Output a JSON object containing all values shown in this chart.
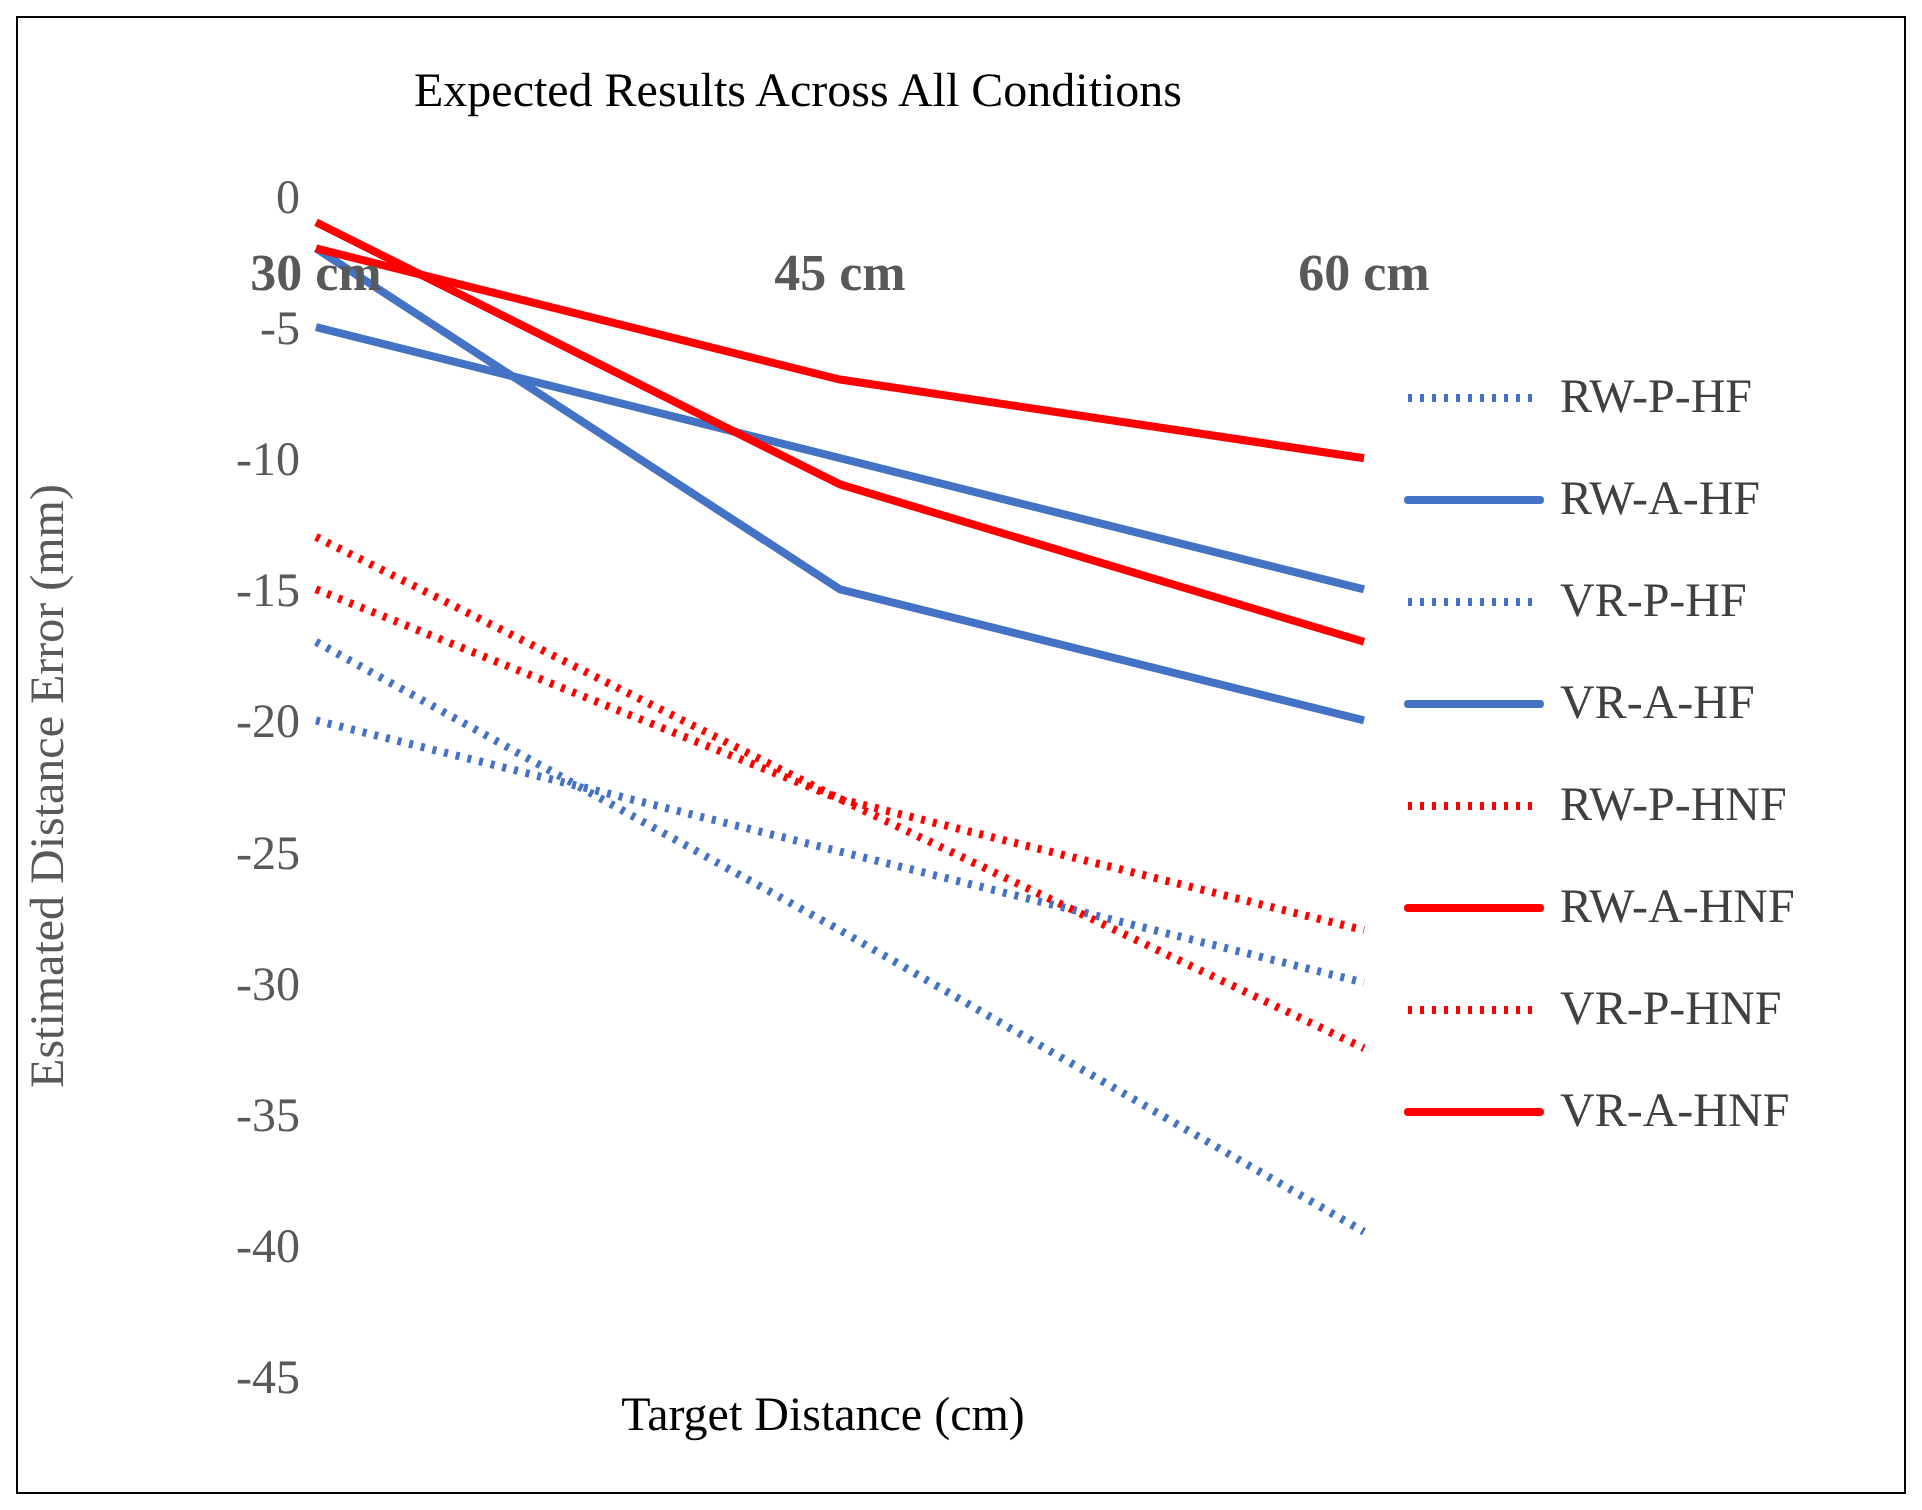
{
  "chart_data": {
    "type": "line",
    "title": "Expected Results Across All Conditions",
    "xlabel": "Target Distance (cm)",
    "ylabel": "Estimated Distance Error (mm)",
    "categories": [
      "30 cm",
      "45 cm",
      "60 cm"
    ],
    "ylim": [
      -45,
      0
    ],
    "yticks": [
      -45,
      -40,
      -35,
      -30,
      -25,
      -20,
      -15,
      -10,
      -5,
      0
    ],
    "grid": false,
    "legend": "right",
    "marker": "none",
    "series": [
      {
        "name": "RW-P-HF",
        "color": "#4472c4",
        "line_style": "dotted",
        "values": [
          -20,
          -25,
          -30
        ]
      },
      {
        "name": "RW-A-HF",
        "color": "#4472c4",
        "line_style": "solid",
        "values": [
          -5,
          -10,
          -15
        ]
      },
      {
        "name": "VR-P-HF",
        "color": "#4472c4",
        "line_style": "dotted",
        "values": [
          -17,
          -28,
          -39.5
        ]
      },
      {
        "name": "VR-A-HF",
        "color": "#4472c4",
        "line_style": "solid",
        "values": [
          -2,
          -15,
          -20
        ]
      },
      {
        "name": "RW-P-HNF",
        "color": "#ff0000",
        "line_style": "dotted",
        "values": [
          -15,
          -23,
          -28
        ]
      },
      {
        "name": "RW-A-HNF",
        "color": "#ff0000",
        "line_style": "solid",
        "values": [
          -2,
          -7,
          -10
        ]
      },
      {
        "name": "VR-P-HNF",
        "color": "#ff0000",
        "line_style": "dotted",
        "values": [
          -13,
          -23,
          -32.5
        ]
      },
      {
        "name": "VR-A-HNF",
        "color": "#ff0000",
        "line_style": "solid",
        "values": [
          -1,
          -11,
          -17
        ]
      }
    ]
  }
}
